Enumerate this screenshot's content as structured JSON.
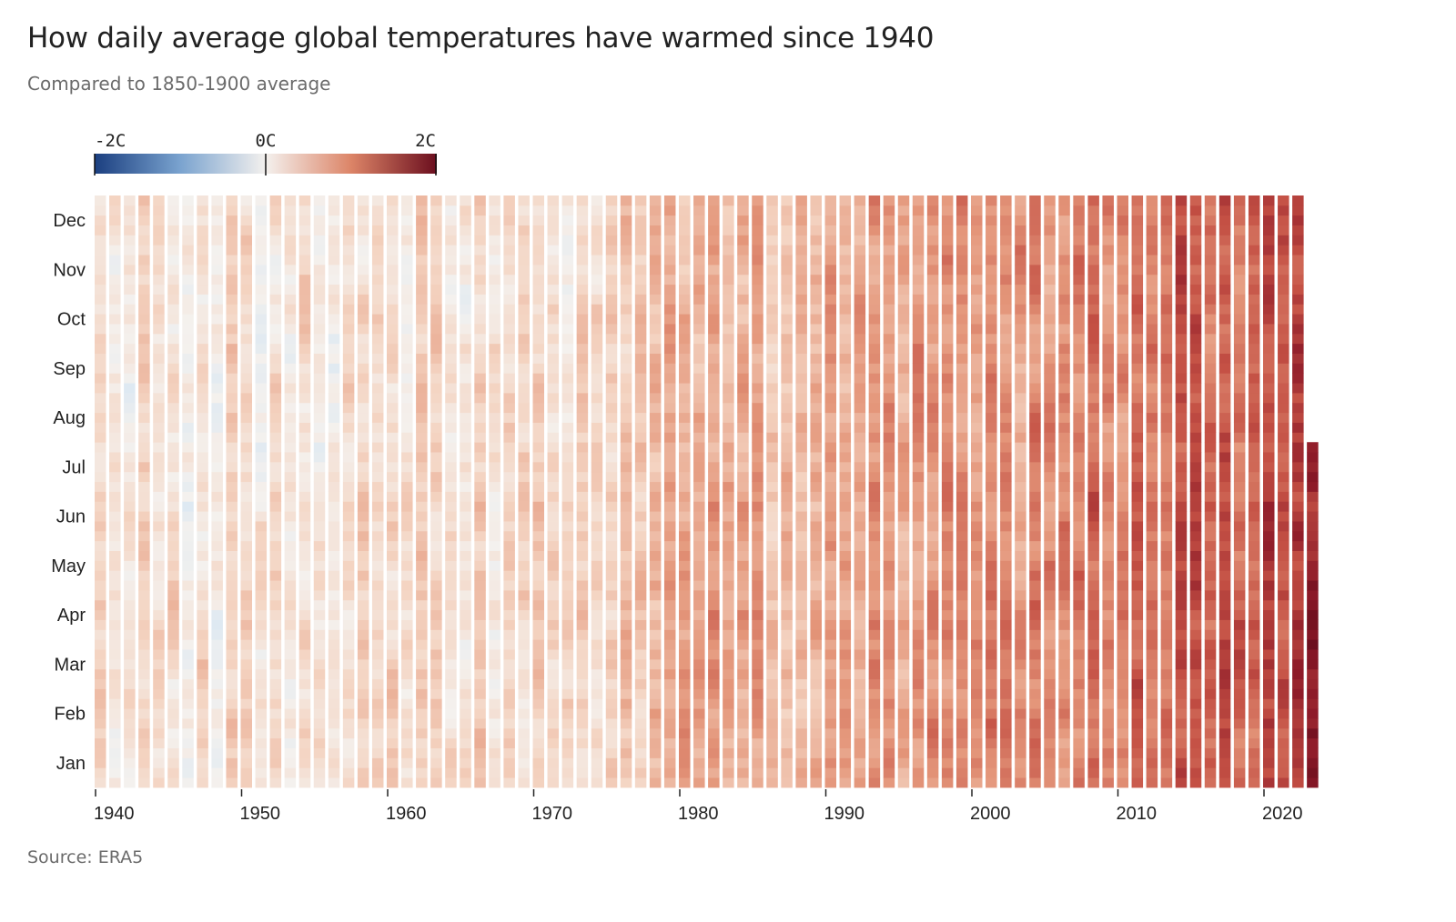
{
  "title": "How daily average global temperatures have warmed since 1940",
  "subtitle": "Compared to 1850-1900 average",
  "source": "Source: ERA5",
  "legend": {
    "labels": [
      "-2C",
      "0C",
      "2C"
    ],
    "colors": {
      "cold_end": "#1b3f80",
      "neutral": "#f4f1ee",
      "warm_end": "#6b0e1e"
    },
    "range": [
      -2,
      2
    ]
  },
  "chart_data": {
    "type": "heatmap",
    "title": "How daily average global temperatures have warmed since 1940",
    "subtitle": "Compared to 1850-1900 average",
    "xlabel": "",
    "ylabel": "",
    "x_ticks": [
      "1940",
      "1950",
      "1960",
      "1970",
      "1980",
      "1990",
      "2000",
      "2010",
      "2020"
    ],
    "y_ticks": [
      "Jan",
      "Feb",
      "Mar",
      "Apr",
      "May",
      "Jun",
      "Jul",
      "Aug",
      "Sep",
      "Oct",
      "Nov",
      "Dec"
    ],
    "x_range": [
      1940,
      2023
    ],
    "last_year_partial_through": "Jul",
    "color_scale": {
      "min": -2,
      "max": 2,
      "unit": "C"
    },
    "grid": false,
    "legend_position": "top-left",
    "approx_annual_anomaly_by_decade_start": {
      "1940": 0.25,
      "1950": 0.22,
      "1960": 0.28,
      "1970": 0.3,
      "1980": 0.6,
      "1990": 0.75,
      "2000": 0.95,
      "2010": 1.15,
      "2020": 1.35
    }
  }
}
